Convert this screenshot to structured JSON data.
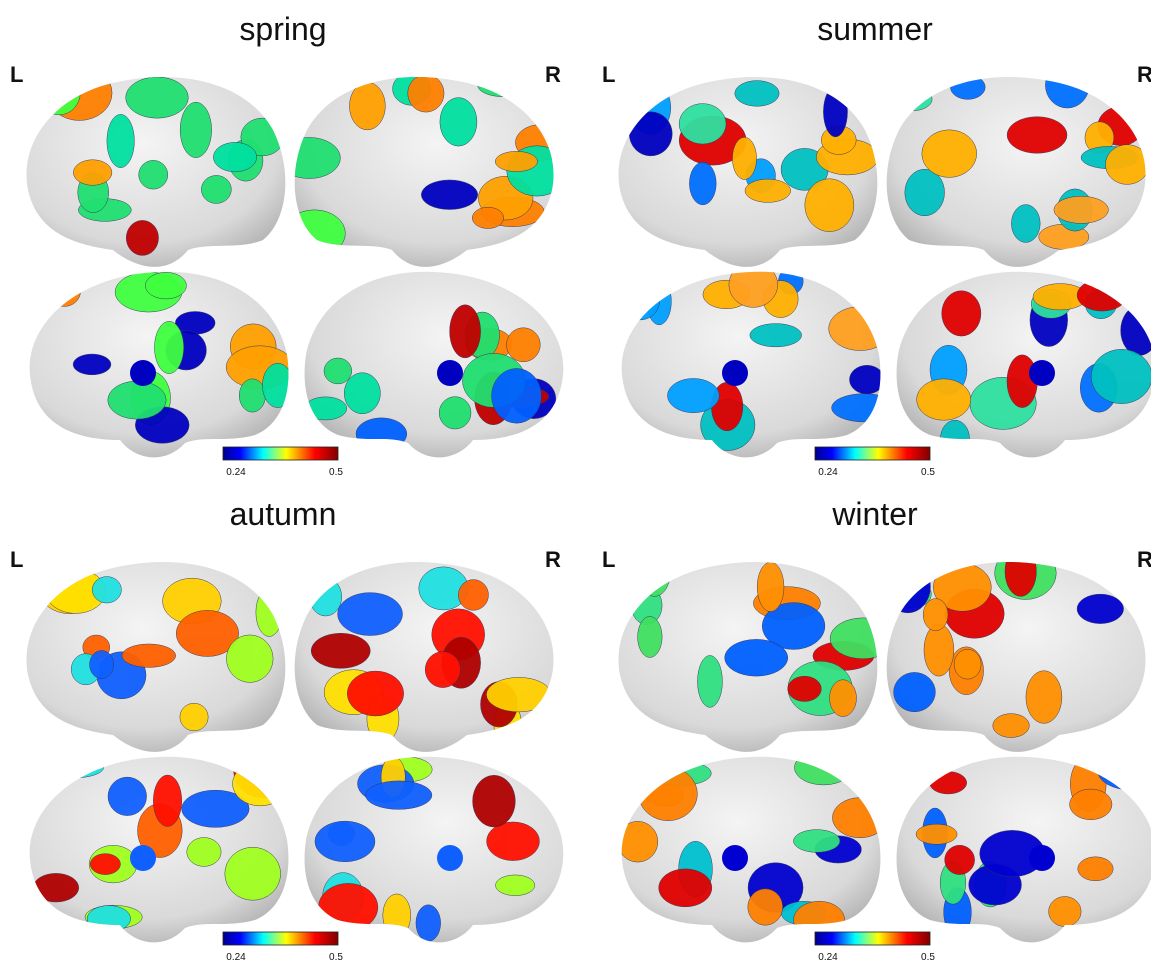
{
  "panels": [
    {
      "title": "spring",
      "left_label": "L",
      "right_label": "R",
      "colorbar": {
        "min_label": "0.24",
        "max_label": "0.5"
      }
    },
    {
      "title": "summer",
      "left_label": "L",
      "right_label": "R",
      "colorbar": {
        "min_label": "0.24",
        "max_label": "0.5"
      }
    },
    {
      "title": "autumn",
      "left_label": "L",
      "right_label": "R",
      "colorbar": {
        "min_label": "0.24",
        "max_label": "0.5"
      }
    },
    {
      "title": "winter",
      "left_label": "L",
      "right_label": "R",
      "colorbar": {
        "min_label": "0.24",
        "max_label": "0.5"
      }
    }
  ]
}
